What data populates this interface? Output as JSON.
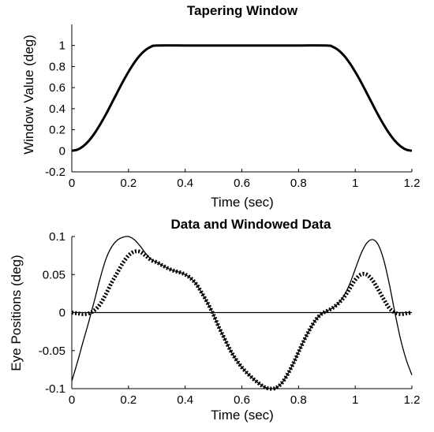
{
  "chart_data": [
    {
      "type": "line",
      "title": "Tapering Window",
      "xlabel": "Time (sec)",
      "ylabel": "Window Value (deg)",
      "xlim": [
        0,
        1.2
      ],
      "ylim": [
        -0.2,
        1.2
      ],
      "xticks": [
        "0",
        "0.2",
        "0.4",
        "0.6",
        "0.8",
        "1",
        "1.2"
      ],
      "yticks": [
        "-0.2",
        "0",
        "0.2",
        "0.4",
        "0.6",
        "0.8",
        "1"
      ],
      "grid": false,
      "series": [
        {
          "style": "solid-thick",
          "color": "#000000",
          "x": [
            0,
            0.02,
            0.04,
            0.06,
            0.08,
            0.1,
            0.12,
            0.14,
            0.16,
            0.18,
            0.2,
            0.22,
            0.24,
            0.26,
            0.28,
            0.3,
            0.4,
            0.5,
            0.6,
            0.7,
            0.8,
            0.9,
            0.92,
            0.94,
            0.96,
            0.98,
            1.0,
            1.02,
            1.04,
            1.06,
            1.08,
            1.1,
            1.12,
            1.14,
            1.16,
            1.18,
            1.2
          ],
          "y": [
            0.0,
            0.011,
            0.043,
            0.095,
            0.165,
            0.25,
            0.345,
            0.448,
            0.552,
            0.655,
            0.75,
            0.835,
            0.905,
            0.957,
            0.989,
            1.0,
            1.0,
            1.0,
            1.0,
            1.0,
            1.0,
            1.0,
            0.989,
            0.957,
            0.905,
            0.835,
            0.75,
            0.655,
            0.552,
            0.448,
            0.345,
            0.25,
            0.165,
            0.095,
            0.043,
            0.011,
            0.0
          ]
        }
      ]
    },
    {
      "type": "line",
      "title": "Data and Windowed Data",
      "xlabel": "Time (sec)",
      "ylabel": "Eye Positions (deg)",
      "xlim": [
        0,
        1.2
      ],
      "ylim": [
        -0.1,
        0.1
      ],
      "xticks": [
        "0",
        "0.2",
        "0.4",
        "0.6",
        "0.8",
        "1",
        "1.2"
      ],
      "yticks": [
        "-0.1",
        "-0.05",
        "0",
        "0.05",
        "0.1"
      ],
      "grid": false,
      "zero_line": true,
      "series": [
        {
          "style": "solid-thin",
          "color": "#000000",
          "x": [
            0,
            0.02,
            0.04,
            0.06,
            0.08,
            0.1,
            0.12,
            0.14,
            0.16,
            0.18,
            0.2,
            0.22,
            0.24,
            0.26,
            0.28,
            0.3,
            0.32,
            0.34,
            0.36,
            0.38,
            0.4,
            0.42,
            0.44,
            0.46,
            0.48,
            0.5,
            0.52,
            0.54,
            0.56,
            0.58,
            0.6,
            0.62,
            0.64,
            0.66,
            0.68,
            0.7,
            0.72,
            0.74,
            0.76,
            0.78,
            0.8,
            0.82,
            0.84,
            0.86,
            0.88,
            0.9,
            0.92,
            0.94,
            0.96,
            0.98,
            1.0,
            1.02,
            1.04,
            1.06,
            1.08,
            1.1,
            1.12,
            1.14,
            1.16,
            1.18,
            1.2
          ],
          "y": [
            -0.09,
            -0.065,
            -0.038,
            -0.012,
            0.016,
            0.045,
            0.07,
            0.086,
            0.095,
            0.099,
            0.1,
            0.096,
            0.088,
            0.078,
            0.07,
            0.066,
            0.062,
            0.058,
            0.055,
            0.053,
            0.05,
            0.045,
            0.037,
            0.025,
            0.012,
            -0.003,
            -0.02,
            -0.035,
            -0.05,
            -0.062,
            -0.072,
            -0.08,
            -0.087,
            -0.093,
            -0.098,
            -0.1,
            -0.099,
            -0.093,
            -0.082,
            -0.068,
            -0.052,
            -0.036,
            -0.022,
            -0.01,
            -0.002,
            0.002,
            0.006,
            0.012,
            0.022,
            0.037,
            0.057,
            0.077,
            0.091,
            0.096,
            0.09,
            0.07,
            0.038,
            0.0,
            -0.035,
            -0.062,
            -0.082
          ]
        },
        {
          "style": "dotted-thick",
          "color": "#000000",
          "x": [
            0,
            0.02,
            0.04,
            0.06,
            0.08,
            0.1,
            0.12,
            0.14,
            0.16,
            0.18,
            0.2,
            0.22,
            0.24,
            0.26,
            0.28,
            0.3,
            0.32,
            0.34,
            0.36,
            0.38,
            0.4,
            0.42,
            0.44,
            0.46,
            0.48,
            0.5,
            0.52,
            0.54,
            0.56,
            0.58,
            0.6,
            0.62,
            0.64,
            0.66,
            0.68,
            0.7,
            0.72,
            0.74,
            0.76,
            0.78,
            0.8,
            0.82,
            0.84,
            0.86,
            0.88,
            0.9,
            0.92,
            0.94,
            0.96,
            0.98,
            1.0,
            1.02,
            1.04,
            1.06,
            1.08,
            1.1,
            1.12,
            1.14,
            1.16,
            1.18,
            1.2
          ],
          "y": [
            0.0,
            -0.001,
            -0.002,
            -0.001,
            0.003,
            0.011,
            0.024,
            0.039,
            0.052,
            0.065,
            0.075,
            0.08,
            0.08,
            0.075,
            0.069,
            0.066,
            0.062,
            0.058,
            0.055,
            0.053,
            0.05,
            0.045,
            0.037,
            0.025,
            0.012,
            -0.003,
            -0.02,
            -0.035,
            -0.05,
            -0.062,
            -0.072,
            -0.08,
            -0.087,
            -0.093,
            -0.098,
            -0.1,
            -0.099,
            -0.093,
            -0.082,
            -0.068,
            -0.052,
            -0.036,
            -0.022,
            -0.01,
            -0.002,
            0.002,
            0.006,
            0.012,
            0.02,
            0.031,
            0.043,
            0.05,
            0.05,
            0.043,
            0.031,
            0.018,
            0.006,
            0.0,
            -0.002,
            -0.001,
            0.0
          ]
        }
      ]
    }
  ]
}
